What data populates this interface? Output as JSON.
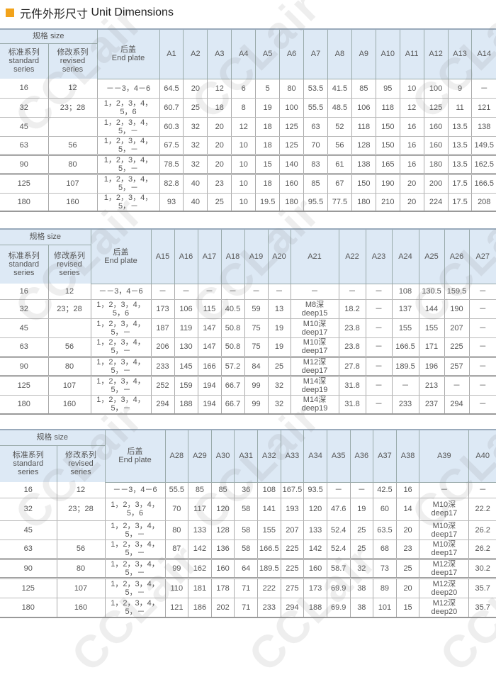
{
  "title": {
    "cn": "元件外形尺寸",
    "en": "Unit Dimensions"
  },
  "colors": {
    "accent": "#f2a31b",
    "header_bg": "#dde9f5"
  },
  "watermark": "CCLair",
  "common_headers": {
    "size": "规格 size",
    "standard": "标准系列\nstandard\nseries",
    "revised": "修改系列\nrevised\nseries",
    "end_plate": "后盖\nEnd plate"
  },
  "tables": [
    {
      "columns": [
        "A1",
        "A2",
        "A3",
        "A4",
        "A5",
        "A6",
        "A7",
        "A8",
        "A9",
        "A10",
        "A11",
        "A12",
        "A13",
        "A14"
      ],
      "rows": [
        [
          "16",
          "12",
          "－－3，4－6",
          "64.5",
          "20",
          "12",
          "6",
          "5",
          "80",
          "53.5",
          "41.5",
          "85",
          "95",
          "10",
          "100",
          "9",
          "－"
        ],
        [
          "32",
          "23；28",
          "1，2，3，4，\n5，6",
          "60.7",
          "25",
          "18",
          "8",
          "19",
          "100",
          "55.5",
          "48.5",
          "106",
          "118",
          "12",
          "125",
          "11",
          "121"
        ],
        [
          "45",
          "",
          "1，2，3，4，\n5，－",
          "60.3",
          "32",
          "20",
          "12",
          "18",
          "125",
          "63",
          "52",
          "118",
          "150",
          "16",
          "160",
          "13.5",
          "138"
        ],
        [
          "63",
          "56",
          "1，2，3，4，\n5，－",
          "67.5",
          "32",
          "20",
          "10",
          "18",
          "125",
          "70",
          "56",
          "128",
          "150",
          "16",
          "160",
          "13.5",
          "149.5"
        ],
        [
          "90",
          "80",
          "1，2，3，4，\n5，－",
          "78.5",
          "32",
          "20",
          "10",
          "15",
          "140",
          "83",
          "61",
          "138",
          "165",
          "16",
          "180",
          "13.5",
          "162.5"
        ],
        [
          "125",
          "107",
          "1，2，3，4，\n5，－",
          "82.8",
          "40",
          "23",
          "10",
          "18",
          "160",
          "85",
          "67",
          "150",
          "190",
          "20",
          "200",
          "17.5",
          "166.5"
        ],
        [
          "180",
          "160",
          "1，2，3，4，\n5，－",
          "93",
          "40",
          "25",
          "10",
          "19.5",
          "180",
          "95.5",
          "77.5",
          "180",
          "210",
          "20",
          "224",
          "17.5",
          "208"
        ]
      ]
    },
    {
      "columns": [
        "A15",
        "A16",
        "A17",
        "A18",
        "A19",
        "A20",
        "A21",
        "A22",
        "A23",
        "A24",
        "A25",
        "A26",
        "A27"
      ],
      "rows": [
        [
          "16",
          "12",
          "－－3，4－6",
          "－",
          "－",
          "－",
          "－",
          "－",
          "－",
          "－",
          "－",
          "－",
          "108",
          "130.5",
          "159.5",
          "－"
        ],
        [
          "32",
          "23；28",
          "1，2，3，4，\n5，6",
          "173",
          "106",
          "115",
          "40.5",
          "59",
          "13",
          "M8深\ndeep15",
          "18.2",
          "－",
          "137",
          "144",
          "190",
          "－"
        ],
        [
          "45",
          "",
          "1，2，3，4，\n5，－",
          "187",
          "119",
          "147",
          "50.8",
          "75",
          "19",
          "M10深\ndeep17",
          "23.8",
          "－",
          "155",
          "155",
          "207",
          "－"
        ],
        [
          "63",
          "56",
          "1，2，3，4，\n5，－",
          "206",
          "130",
          "147",
          "50.8",
          "75",
          "19",
          "M10深\ndeep17",
          "23.8",
          "－",
          "166.5",
          "171",
          "225",
          "－"
        ],
        [
          "90",
          "80",
          "1，2，3，4，\n5，－",
          "233",
          "145",
          "166",
          "57.2",
          "84",
          "25",
          "M12深\ndeep17",
          "27.8",
          "－",
          "189.5",
          "196",
          "257",
          "－"
        ],
        [
          "125",
          "107",
          "1，2，3，4，\n5，－",
          "252",
          "159",
          "194",
          "66.7",
          "99",
          "32",
          "M14深\ndeep19",
          "31.8",
          "－",
          "－",
          "213",
          "－",
          "－"
        ],
        [
          "180",
          "160",
          "1，2，3，4，\n5，－",
          "294",
          "188",
          "194",
          "66.7",
          "99",
          "32",
          "M14深\ndeep19",
          "31.8",
          "－",
          "233",
          "237",
          "294",
          "－"
        ]
      ]
    },
    {
      "columns": [
        "A28",
        "A29",
        "A30",
        "A31",
        "A32",
        "A33",
        "A34",
        "A35",
        "A36",
        "A37",
        "A38",
        "A39",
        "A40"
      ],
      "rows": [
        [
          "16",
          "12",
          "－－3，4－6",
          "55.5",
          "85",
          "85",
          "36",
          "108",
          "167.5",
          "93.5",
          "－",
          "－",
          "42.5",
          "16",
          "－",
          "－"
        ],
        [
          "32",
          "23；28",
          "1，2，3，4，\n5，6",
          "70",
          "117",
          "120",
          "58",
          "141",
          "193",
          "120",
          "47.6",
          "19",
          "60",
          "14",
          "M10深\ndeep17",
          "22.2"
        ],
        [
          "45",
          "",
          "1，2，3，4，\n5，－",
          "80",
          "133",
          "128",
          "58",
          "155",
          "207",
          "133",
          "52.4",
          "25",
          "63.5",
          "20",
          "M10深\ndeep17",
          "26.2"
        ],
        [
          "63",
          "56",
          "1，2，3，4，\n5，－",
          "87",
          "142",
          "136",
          "58",
          "166.5",
          "225",
          "142",
          "52.4",
          "25",
          "68",
          "23",
          "M10深\ndeep17",
          "26.2"
        ],
        [
          "90",
          "80",
          "1，2，3，4，\n5，－",
          "99",
          "162",
          "160",
          "64",
          "189.5",
          "225",
          "160",
          "58.7",
          "32",
          "73",
          "25",
          "M12深\ndeep17",
          "30.2"
        ],
        [
          "125",
          "107",
          "1，2，3，4，\n5，－",
          "110",
          "181",
          "178",
          "71",
          "222",
          "275",
          "173",
          "69.9",
          "38",
          "89",
          "20",
          "M12深\ndeep20",
          "35.7"
        ],
        [
          "180",
          "160",
          "1，2，3，4，\n5，－",
          "121",
          "186",
          "202",
          "71",
          "233",
          "294",
          "188",
          "69.9",
          "38",
          "101",
          "15",
          "M12深\ndeep20",
          "35.7"
        ]
      ]
    }
  ]
}
